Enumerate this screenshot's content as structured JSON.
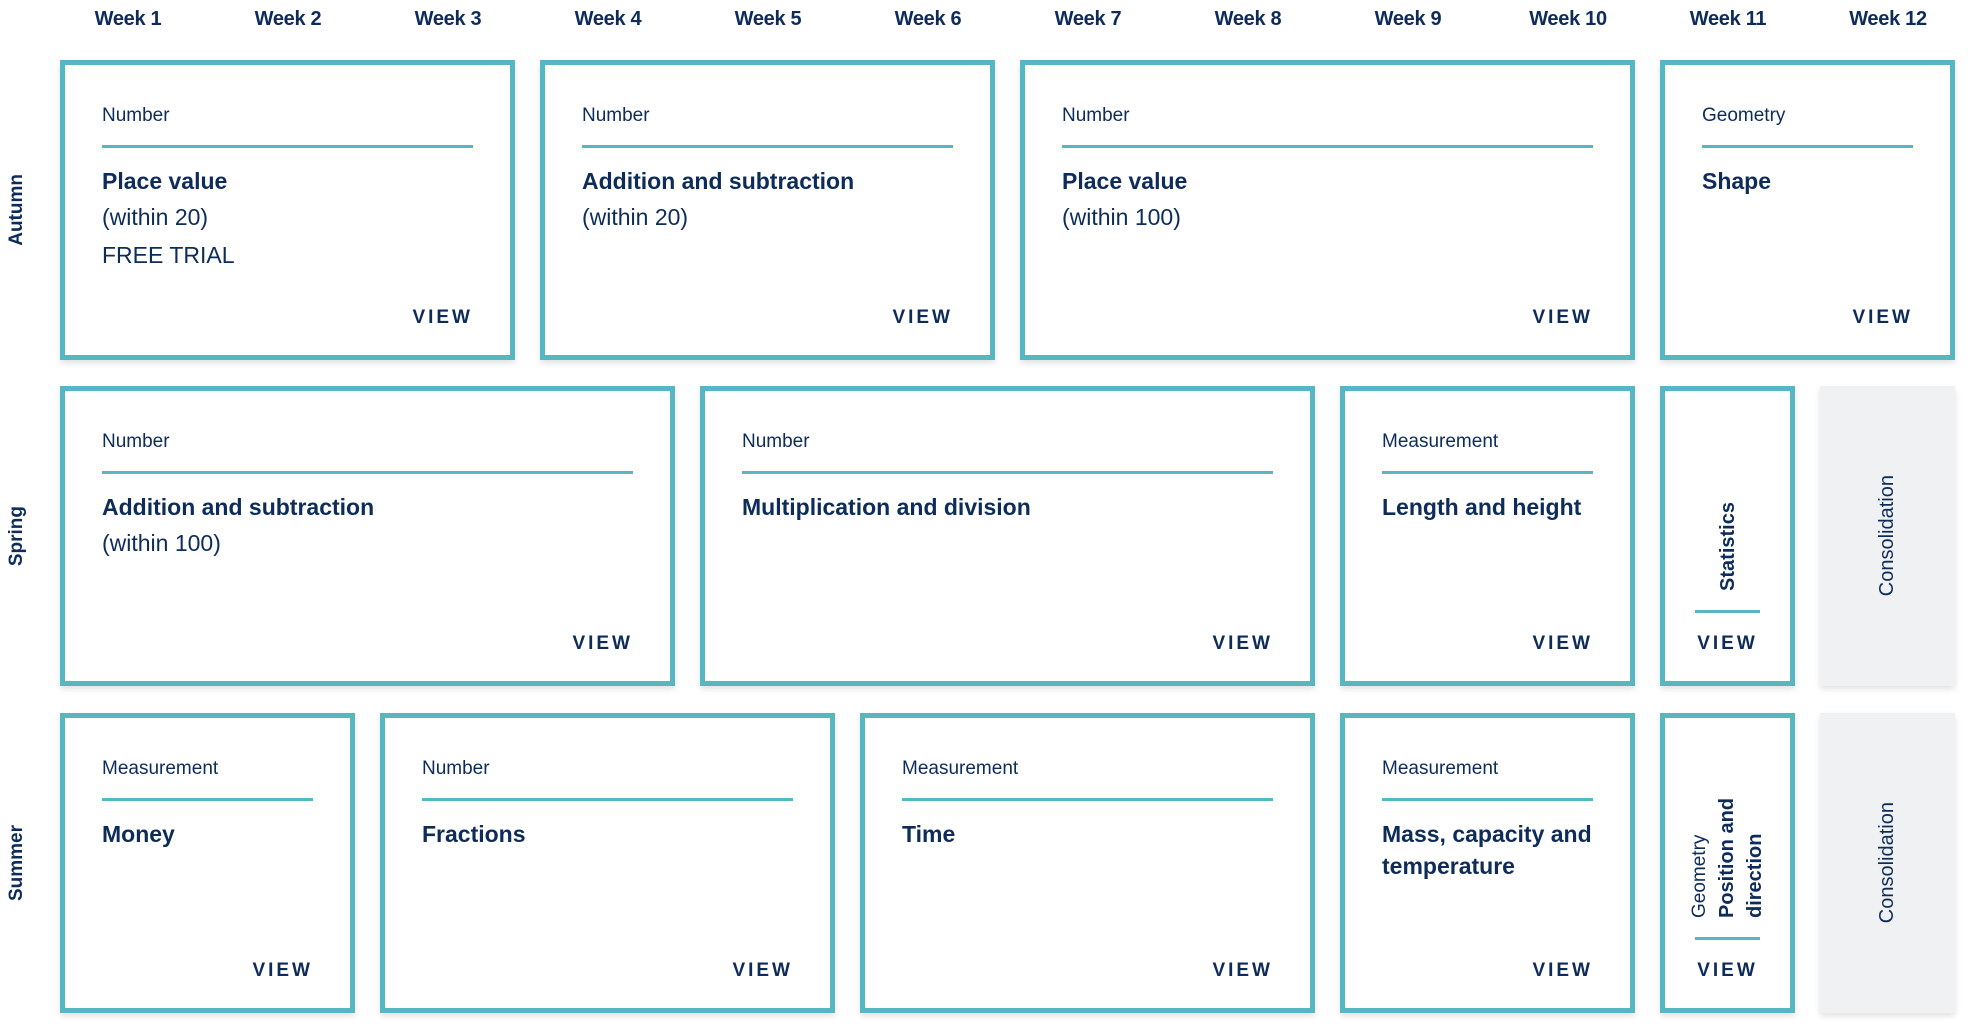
{
  "weeks": [
    "Week 1",
    "Week 2",
    "Week 3",
    "Week 4",
    "Week 5",
    "Week 6",
    "Week 7",
    "Week 8",
    "Week 9",
    "Week 10",
    "Week 11",
    "Week 12"
  ],
  "colors": {
    "accent": "#56b7c3",
    "text": "#0d2c5a",
    "consolidation_bg": "#f0f1f3"
  },
  "terms": [
    {
      "name": "Autumn",
      "blocks": [
        {
          "type": "card",
          "start_week": 1,
          "weeks": 3,
          "category": "Number",
          "title": "Place value",
          "sub": [
            "(within 20)",
            "FREE TRIAL"
          ],
          "view": "VIEW"
        },
        {
          "type": "card",
          "start_week": 4,
          "weeks": 3,
          "category": "Number",
          "title": "Addition and subtraction",
          "sub": [
            "(within 20)"
          ],
          "view": "VIEW"
        },
        {
          "type": "card",
          "start_week": 7,
          "weeks": 4,
          "category": "Number",
          "title": "Place value",
          "sub": [
            "(within 100)"
          ],
          "view": "VIEW"
        },
        {
          "type": "card",
          "start_week": 11,
          "weeks": 2,
          "category": "Geometry",
          "title": "Shape",
          "sub": [],
          "view": "VIEW"
        }
      ]
    },
    {
      "name": "Spring",
      "blocks": [
        {
          "type": "card",
          "start_week": 1,
          "weeks": 4,
          "category": "Number",
          "title": "Addition and subtraction",
          "sub": [
            "(within 100)"
          ],
          "view": "VIEW"
        },
        {
          "type": "card",
          "start_week": 5,
          "weeks": 4,
          "category": "Number",
          "title": "Multiplication and division",
          "sub": [],
          "view": "VIEW"
        },
        {
          "type": "card",
          "start_week": 9,
          "weeks": 2,
          "category": "Measurement",
          "title": "Length and height",
          "sub": [],
          "view": "VIEW"
        },
        {
          "type": "vertical",
          "start_week": 11,
          "weeks": 1,
          "category": "",
          "title_lines": [
            "Statistics"
          ],
          "view": "VIEW"
        },
        {
          "type": "consolidation",
          "start_week": 12,
          "weeks": 1,
          "label": "Consolidation"
        }
      ]
    },
    {
      "name": "Summer",
      "blocks": [
        {
          "type": "card",
          "start_week": 1,
          "weeks": 2,
          "category": "Measurement",
          "title": "Money",
          "sub": [],
          "view": "VIEW"
        },
        {
          "type": "card",
          "start_week": 3,
          "weeks": 3,
          "category": "Number",
          "title": "Fractions",
          "sub": [],
          "view": "VIEW"
        },
        {
          "type": "card",
          "start_week": 6,
          "weeks": 3,
          "category": "Measurement",
          "title": "Time",
          "sub": [],
          "view": "VIEW"
        },
        {
          "type": "card",
          "start_week": 9,
          "weeks": 2,
          "category": "Measurement",
          "title": "Mass, capacity and temperature",
          "sub": [],
          "view": "VIEW"
        },
        {
          "type": "vertical",
          "start_week": 11,
          "weeks": 1,
          "category": "Geometry",
          "title_lines": [
            "Position and",
            "direction"
          ],
          "view": "VIEW"
        },
        {
          "type": "consolidation",
          "start_week": 12,
          "weeks": 1,
          "label": "Consolidation"
        }
      ]
    }
  ]
}
